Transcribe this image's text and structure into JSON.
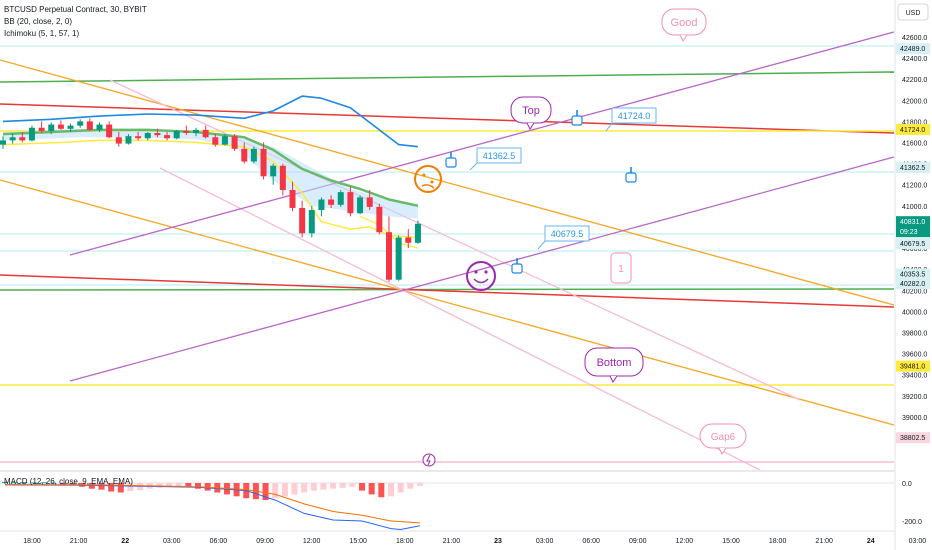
{
  "chart_data": {
    "type": "candlestick",
    "symbol_line": "BTCUSD Perpetual Contract, 30, BYBIT",
    "indicator_bb": "BB (20, close, 2, 0)",
    "indicator_ichimoku": "Ichimoku (5, 1, 57, 1)",
    "indicator_macd": "MACD (12, 26, close, 9, EMA, EMA)",
    "currency_label": "USD",
    "price_ticks": [
      "42600.0",
      "42400.0",
      "42200.0",
      "42000.0",
      "41800.0",
      "41600.0",
      "41400.0",
      "41200.0",
      "41000.0",
      "40800.0",
      "40600.0",
      "40400.0",
      "40200.0",
      "40000.0",
      "39800.0",
      "39600.0",
      "39400.0",
      "39200.0",
      "39000.0",
      "38800.0"
    ],
    "macd_ticks": [
      "0.0",
      "-200.0"
    ],
    "time_ticks": [
      "18:00",
      "21:00",
      "22",
      "03:00",
      "06:00",
      "09:00",
      "12:00",
      "15:00",
      "18:00",
      "21:00",
      "23",
      "03:00",
      "06:00",
      "09:00",
      "12:00",
      "15:00",
      "18:00",
      "21:00",
      "24",
      "03:00"
    ],
    "price_tags": [
      {
        "value": "42489.0",
        "color": "#d7f0f2",
        "text_color": "#131722"
      },
      {
        "value": "41724.0",
        "color": "#ffeb3b",
        "text_color": "#131722"
      },
      {
        "value": "41362.5",
        "color": "#d7f0f2",
        "text_color": "#131722"
      },
      {
        "value": "40831.0",
        "color": "#089981",
        "text_color": "#ffffff"
      },
      {
        "value": "09:23",
        "color": "#089981",
        "text_color": "#ffffff"
      },
      {
        "value": "40679.5",
        "color": "#d7f0f2",
        "text_color": "#131722"
      },
      {
        "value": "40353.5",
        "color": "#d7f0f2",
        "text_color": "#131722"
      },
      {
        "value": "40282.0",
        "color": "#d7f0f2",
        "text_color": "#131722"
      },
      {
        "value": "39481.0",
        "color": "#ffeb3b",
        "text_color": "#131722"
      },
      {
        "value": "38802.5",
        "color": "#f8d7de",
        "text_color": "#131722"
      }
    ],
    "callouts": [
      {
        "text": "Good",
        "color": "#f48fb1"
      },
      {
        "text": "Top",
        "color": "#9c27b0"
      },
      {
        "text": "Bottom",
        "color": "#9c27b0"
      },
      {
        "text": "Gap6",
        "color": "#f48fb1"
      },
      {
        "text": "1",
        "color": "#f48fb1"
      }
    ],
    "price_notes": [
      {
        "text": "41724.0"
      },
      {
        "text": "41362.5"
      },
      {
        "text": "40679.5"
      }
    ],
    "ohlc": [
      [
        41580,
        41660,
        41540,
        41620
      ],
      [
        41620,
        41690,
        41590,
        41650
      ],
      [
        41650,
        41700,
        41600,
        41620
      ],
      [
        41620,
        41760,
        41610,
        41740
      ],
      [
        41740,
        41800,
        41690,
        41710
      ],
      [
        41710,
        41790,
        41680,
        41770
      ],
      [
        41770,
        41810,
        41720,
        41730
      ],
      [
        41730,
        41780,
        41700,
        41760
      ],
      [
        41760,
        41820,
        41740,
        41800
      ],
      [
        41800,
        41830,
        41710,
        41720
      ],
      [
        41720,
        41790,
        41700,
        41770
      ],
      [
        41770,
        41800,
        41640,
        41650
      ],
      [
        41650,
        41700,
        41560,
        41590
      ],
      [
        41590,
        41680,
        41580,
        41660
      ],
      [
        41660,
        41700,
        41620,
        41640
      ],
      [
        41640,
        41700,
        41620,
        41690
      ],
      [
        41690,
        41730,
        41650,
        41670
      ],
      [
        41670,
        41700,
        41620,
        41640
      ],
      [
        41640,
        41720,
        41630,
        41710
      ],
      [
        41710,
        41760,
        41670,
        41690
      ],
      [
        41690,
        41740,
        41660,
        41720
      ],
      [
        41720,
        41760,
        41640,
        41650
      ],
      [
        41650,
        41680,
        41560,
        41580
      ],
      [
        41580,
        41680,
        41570,
        41660
      ],
      [
        41660,
        41680,
        41520,
        41540
      ],
      [
        41540,
        41600,
        41400,
        41420
      ],
      [
        41420,
        41560,
        41400,
        41540
      ],
      [
        41540,
        41600,
        41250,
        41280
      ],
      [
        41280,
        41400,
        41200,
        41380
      ],
      [
        41380,
        41400,
        41100,
        41150
      ],
      [
        41150,
        41230,
        40950,
        40980
      ],
      [
        40980,
        41050,
        40700,
        40740
      ],
      [
        40740,
        41000,
        40700,
        40960
      ],
      [
        40960,
        41080,
        40900,
        41060
      ],
      [
        41060,
        41100,
        40980,
        41010
      ],
      [
        41010,
        41150,
        40990,
        41130
      ],
      [
        41130,
        41180,
        40900,
        40930
      ],
      [
        40930,
        41100,
        40920,
        41080
      ],
      [
        41080,
        41150,
        40960,
        40990
      ],
      [
        40990,
        41020,
        40730,
        40750
      ],
      [
        40750,
        40900,
        40280,
        40300
      ],
      [
        40300,
        40720,
        40290,
        40700
      ],
      [
        40700,
        40780,
        40600,
        40650
      ],
      [
        40650,
        40860,
        40640,
        40830
      ]
    ],
    "bb_upper_points": [
      [
        0,
        41800
      ],
      [
        5,
        41820
      ],
      [
        10,
        41850
      ],
      [
        15,
        41870
      ],
      [
        20,
        41860
      ],
      [
        25,
        41830
      ],
      [
        28,
        41900
      ],
      [
        31,
        42040
      ],
      [
        33,
        42020
      ],
      [
        36,
        41930
      ],
      [
        39,
        41720
      ],
      [
        41,
        41580
      ],
      [
        43,
        41560
      ]
    ],
    "bb_basis_points": [
      [
        0,
        41680
      ],
      [
        5,
        41700
      ],
      [
        10,
        41720
      ],
      [
        15,
        41720
      ],
      [
        20,
        41700
      ],
      [
        25,
        41650
      ],
      [
        28,
        41530
      ],
      [
        31,
        41350
      ],
      [
        34,
        41240
      ],
      [
        37,
        41160
      ],
      [
        40,
        41060
      ],
      [
        43,
        41000
      ]
    ],
    "tenkan_points": [
      [
        0,
        41580
      ],
      [
        6,
        41600
      ],
      [
        10,
        41620
      ],
      [
        15,
        41620
      ],
      [
        20,
        41600
      ],
      [
        25,
        41560
      ],
      [
        28,
        41420
      ],
      [
        31,
        41120
      ],
      [
        33,
        40850
      ],
      [
        36,
        40780
      ],
      [
        38,
        40800
      ],
      [
        40,
        40720
      ],
      [
        43,
        40700
      ]
    ],
    "cloud_upper": [
      [
        0,
        41700
      ],
      [
        8,
        41730
      ],
      [
        14,
        41720
      ],
      [
        20,
        41700
      ],
      [
        24,
        41660
      ],
      [
        28,
        41560
      ],
      [
        32,
        41360
      ],
      [
        36,
        41160
      ],
      [
        40,
        41060
      ],
      [
        43,
        41020
      ]
    ],
    "cloud_lower": [
      [
        0,
        41620
      ],
      [
        8,
        41650
      ],
      [
        14,
        41650
      ],
      [
        20,
        41630
      ],
      [
        24,
        41560
      ],
      [
        28,
        41240
      ],
      [
        32,
        41000
      ],
      [
        36,
        40950
      ],
      [
        40,
        40900
      ],
      [
        43,
        40880
      ]
    ],
    "lagging_points": [
      [
        37,
        40900
      ],
      [
        39,
        40820
      ],
      [
        41,
        40650
      ],
      [
        43,
        40600
      ]
    ],
    "macd_hist": [
      6,
      4,
      5,
      3,
      4,
      2,
      -8,
      -12,
      -20,
      -30,
      -35,
      -45,
      -50,
      -42,
      -38,
      -30,
      -25,
      -20,
      -18,
      -22,
      -30,
      -40,
      -50,
      -60,
      -70,
      -80,
      -85,
      -90,
      -80,
      -70,
      -60,
      -50,
      -40,
      -35,
      -30,
      -25,
      -20,
      -40,
      -60,
      -75,
      -70,
      -50,
      -30,
      -15
    ],
    "macd_line": [
      [
        0,
        -10
      ],
      [
        8,
        -12
      ],
      [
        15,
        -18
      ],
      [
        20,
        -22
      ],
      [
        25,
        -40
      ],
      [
        28,
        -90
      ],
      [
        31,
        -160
      ],
      [
        34,
        -195
      ],
      [
        37,
        -200
      ],
      [
        40,
        -240
      ],
      [
        41,
        -245
      ],
      [
        43,
        -225
      ]
    ],
    "signal_line": [
      [
        0,
        -8
      ],
      [
        10,
        -10
      ],
      [
        20,
        -20
      ],
      [
        25,
        -35
      ],
      [
        28,
        -60
      ],
      [
        31,
        -110
      ],
      [
        34,
        -150
      ],
      [
        37,
        -170
      ],
      [
        40,
        -200
      ],
      [
        43,
        -210
      ]
    ]
  }
}
